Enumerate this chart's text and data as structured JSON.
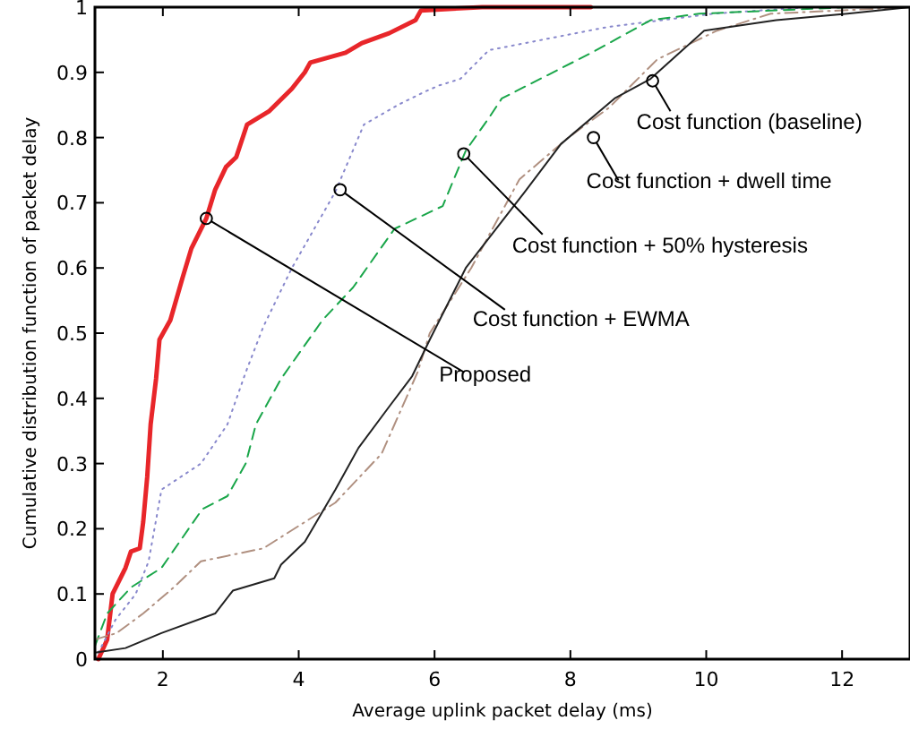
{
  "chart_data": {
    "type": "line",
    "xlabel": "Average uplink packet delay (ms)",
    "ylabel": "Cumulative distribution function of packet delay",
    "xlim": [
      1,
      13
    ],
    "ylim": [
      0,
      1
    ],
    "xticks": [
      2,
      4,
      6,
      8,
      10,
      12
    ],
    "yticks": [
      0,
      0.1,
      0.2,
      0.3,
      0.4,
      0.5,
      0.6,
      0.7,
      0.8,
      0.9,
      1
    ],
    "grid": false,
    "marker": "none",
    "series": [
      {
        "color": "#e8262a",
        "line_style": "solid",
        "x": [
          1.05,
          1.18,
          1.26,
          1.45,
          1.53,
          1.66,
          1.71,
          1.77,
          1.82,
          1.9,
          1.95,
          2.11,
          2.29,
          2.42,
          2.64,
          2.77,
          2.93,
          3.08,
          3.24,
          3.56,
          3.9,
          4.09,
          4.17,
          4.69,
          4.93,
          5.33,
          5.72,
          5.8,
          6.7,
          8.3
        ],
        "values": [
          0,
          0.03,
          0.1,
          0.14,
          0.165,
          0.17,
          0.21,
          0.28,
          0.36,
          0.43,
          0.49,
          0.52,
          0.585,
          0.63,
          0.676,
          0.72,
          0.755,
          0.77,
          0.82,
          0.84,
          0.875,
          0.9,
          0.915,
          0.93,
          0.945,
          0.96,
          0.98,
          0.995,
          1,
          1
        ]
      },
      {
        "color": "#8888cc",
        "line_style": "dotted",
        "x": [
          1,
          1.3,
          1.6,
          1.79,
          1.98,
          2.56,
          2.95,
          3.22,
          3.48,
          3.9,
          4.54,
          4.96,
          5.46,
          5.85,
          6.07,
          6.38,
          6.8,
          8.57,
          10.1,
          11.5
        ],
        "values": [
          0,
          0.06,
          0.1,
          0.15,
          0.26,
          0.3,
          0.36,
          0.44,
          0.51,
          0.6,
          0.717,
          0.82,
          0.85,
          0.87,
          0.88,
          0.89,
          0.934,
          0.97,
          0.99,
          1
        ]
      },
      {
        "color": "#1aa64a",
        "line_style": "dashed",
        "x": [
          1,
          1.18,
          1.53,
          1.98,
          2.58,
          2.95,
          3.22,
          3.37,
          3.74,
          4.35,
          4.8,
          5.41,
          6.12,
          6.46,
          6.8,
          6.99,
          8.31,
          9.18,
          9.9,
          12.1
        ],
        "values": [
          0.02,
          0.07,
          0.11,
          0.14,
          0.23,
          0.25,
          0.3,
          0.36,
          0.43,
          0.52,
          0.57,
          0.66,
          0.695,
          0.78,
          0.83,
          0.86,
          0.93,
          0.98,
          0.99,
          1
        ]
      },
      {
        "color": "#b09080",
        "line_style": "dashdot",
        "x": [
          1,
          1.32,
          1.71,
          2.16,
          2.56,
          3.48,
          4.01,
          4.54,
          5.22,
          5.75,
          5.93,
          6.54,
          7.25,
          7.97,
          8.57,
          9.28,
          10.16,
          10.95,
          13
        ],
        "values": [
          0.03,
          0.04,
          0.07,
          0.11,
          0.15,
          0.17,
          0.205,
          0.24,
          0.315,
          0.44,
          0.5,
          0.6,
          0.736,
          0.8,
          0.846,
          0.92,
          0.964,
          0.99,
          1
        ]
      },
      {
        "color": "#222222",
        "line_style": "solid",
        "x": [
          1,
          1.45,
          1.98,
          2.77,
          3.03,
          3.64,
          3.74,
          4.09,
          4.54,
          4.88,
          5.33,
          5.67,
          5.93,
          6.46,
          7.33,
          7.86,
          8.65,
          9.18,
          9.97,
          11.03,
          12.08,
          13
        ],
        "values": [
          0.01,
          0.017,
          0.04,
          0.07,
          0.105,
          0.124,
          0.145,
          0.18,
          0.26,
          0.324,
          0.387,
          0.434,
          0.49,
          0.6,
          0.717,
          0.79,
          0.86,
          0.89,
          0.964,
          0.98,
          0.99,
          1
        ]
      }
    ],
    "annotations": [
      {
        "text": "Cost function (baseline)",
        "x": 9.21,
        "y": 0.887
      },
      {
        "text": "Cost function + dwell time",
        "x": 8.34,
        "y": 0.8
      },
      {
        "text": "Cost function + 50% hysteresis",
        "x": 6.43,
        "y": 0.775
      },
      {
        "text": "Cost function + EWMA",
        "x": 4.61,
        "y": 0.72
      },
      {
        "text": "Proposed",
        "x": 2.64,
        "y": 0.676
      }
    ]
  }
}
